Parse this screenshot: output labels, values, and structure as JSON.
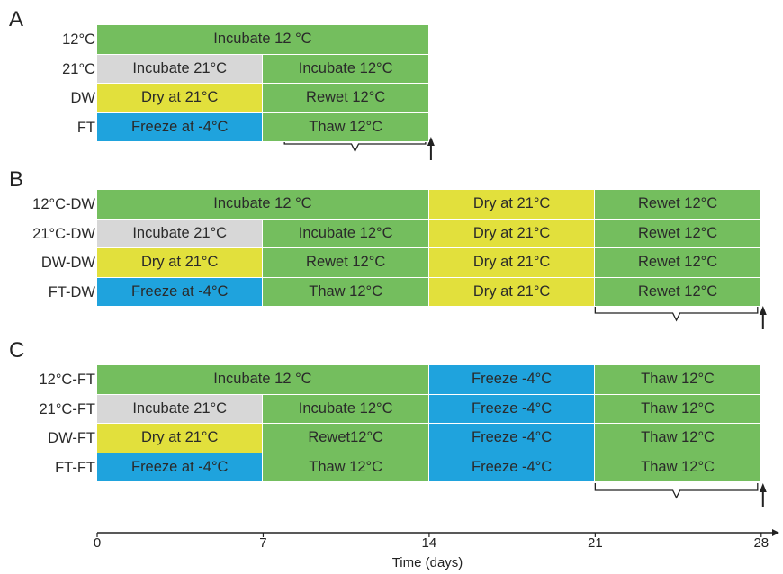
{
  "colors": {
    "incubate12": "#74be5e",
    "incubate21": "#d7d7d7",
    "dry": "#e2e03c",
    "freeze": "#1fa3dd"
  },
  "panels": [
    {
      "letter": "A",
      "rows": [
        {
          "label": "12°C",
          "segments": [
            {
              "text": "Incubate 12 °C",
              "start": 0,
              "end": 14,
              "color": "incubate12"
            }
          ]
        },
        {
          "label": "21°C",
          "segments": [
            {
              "text": "Incubate 21°C",
              "start": 0,
              "end": 7,
              "color": "incubate21"
            },
            {
              "text": "Incubate 12°C",
              "start": 7,
              "end": 14,
              "color": "incubate12"
            }
          ]
        },
        {
          "label": "DW",
          "segments": [
            {
              "text": "Dry at 21°C",
              "start": 0,
              "end": 7,
              "color": "dry"
            },
            {
              "text": "Rewet 12°C",
              "start": 7,
              "end": 14,
              "color": "incubate12"
            }
          ]
        },
        {
          "label": "FT",
          "segments": [
            {
              "text": "Freeze at -4°C",
              "start": 0,
              "end": 7,
              "color": "freeze"
            },
            {
              "text": "Thaw 12°C",
              "start": 7,
              "end": 14,
              "color": "incubate12"
            }
          ]
        }
      ],
      "brace": {
        "start": 7.9,
        "end": 14
      }
    },
    {
      "letter": "B",
      "rows": [
        {
          "label": "12°C-DW",
          "segments": [
            {
              "text": "Incubate 12 °C",
              "start": 0,
              "end": 14,
              "color": "incubate12"
            },
            {
              "text": "Dry at 21°C",
              "start": 14,
              "end": 21,
              "color": "dry"
            },
            {
              "text": "Rewet 12°C",
              "start": 21,
              "end": 28,
              "color": "incubate12"
            }
          ]
        },
        {
          "label": "21°C-DW",
          "segments": [
            {
              "text": "Incubate 21°C",
              "start": 0,
              "end": 7,
              "color": "incubate21"
            },
            {
              "text": "Incubate 12°C",
              "start": 7,
              "end": 14,
              "color": "incubate12"
            },
            {
              "text": "Dry at 21°C",
              "start": 14,
              "end": 21,
              "color": "dry"
            },
            {
              "text": "Rewet 12°C",
              "start": 21,
              "end": 28,
              "color": "incubate12"
            }
          ]
        },
        {
          "label": "DW-DW",
          "segments": [
            {
              "text": "Dry at 21°C",
              "start": 0,
              "end": 7,
              "color": "dry"
            },
            {
              "text": "Rewet 12°C",
              "start": 7,
              "end": 14,
              "color": "incubate12"
            },
            {
              "text": "Dry at 21°C",
              "start": 14,
              "end": 21,
              "color": "dry"
            },
            {
              "text": "Rewet 12°C",
              "start": 21,
              "end": 28,
              "color": "incubate12"
            }
          ]
        },
        {
          "label": "FT-DW",
          "segments": [
            {
              "text": "Freeze at -4°C",
              "start": 0,
              "end": 7,
              "color": "freeze"
            },
            {
              "text": "Thaw 12°C",
              "start": 7,
              "end": 14,
              "color": "incubate12"
            },
            {
              "text": "Dry at 21°C",
              "start": 14,
              "end": 21,
              "color": "dry"
            },
            {
              "text": "Rewet 12°C",
              "start": 21,
              "end": 28,
              "color": "incubate12"
            }
          ]
        }
      ],
      "brace": {
        "start": 21,
        "end": 28
      }
    },
    {
      "letter": "C",
      "rows": [
        {
          "label": "12°C-FT",
          "segments": [
            {
              "text": "Incubate 12 °C",
              "start": 0,
              "end": 14,
              "color": "incubate12"
            },
            {
              "text": "Freeze -4°C",
              "start": 14,
              "end": 21,
              "color": "freeze"
            },
            {
              "text": "Thaw 12°C",
              "start": 21,
              "end": 28,
              "color": "incubate12"
            }
          ]
        },
        {
          "label": "21°C-FT",
          "segments": [
            {
              "text": "Incubate 21°C",
              "start": 0,
              "end": 7,
              "color": "incubate21"
            },
            {
              "text": "Incubate 12°C",
              "start": 7,
              "end": 14,
              "color": "incubate12"
            },
            {
              "text": "Freeze -4°C",
              "start": 14,
              "end": 21,
              "color": "freeze"
            },
            {
              "text": "Thaw 12°C",
              "start": 21,
              "end": 28,
              "color": "incubate12"
            }
          ]
        },
        {
          "label": "DW-FT",
          "segments": [
            {
              "text": "Dry at 21°C",
              "start": 0,
              "end": 7,
              "color": "dry"
            },
            {
              "text": "Rewet12°C",
              "start": 7,
              "end": 14,
              "color": "incubate12"
            },
            {
              "text": "Freeze -4°C",
              "start": 14,
              "end": 21,
              "color": "freeze"
            },
            {
              "text": "Thaw 12°C",
              "start": 21,
              "end": 28,
              "color": "incubate12"
            }
          ]
        },
        {
          "label": "FT-FT",
          "segments": [
            {
              "text": "Freeze at -4°C",
              "start": 0,
              "end": 7,
              "color": "freeze"
            },
            {
              "text": "Thaw 12°C",
              "start": 7,
              "end": 14,
              "color": "incubate12"
            },
            {
              "text": "Freeze -4°C",
              "start": 14,
              "end": 21,
              "color": "freeze"
            },
            {
              "text": "Thaw 12°C",
              "start": 21,
              "end": 28,
              "color": "incubate12"
            }
          ]
        }
      ],
      "brace": {
        "start": 21,
        "end": 28
      }
    }
  ],
  "axis": {
    "ticks": [
      "0",
      "7",
      "14",
      "21",
      "28"
    ],
    "tick_values": [
      0,
      7,
      14,
      21,
      28
    ],
    "title": "Time (days)"
  }
}
